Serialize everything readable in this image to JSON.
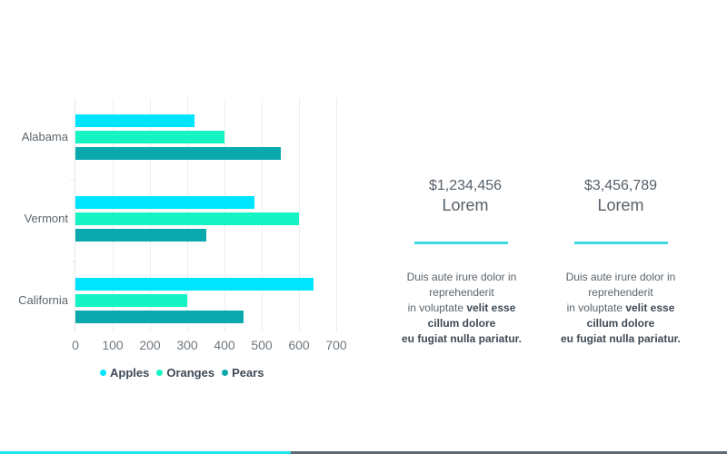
{
  "chart_data": {
    "type": "bar",
    "orientation": "horizontal",
    "title": "",
    "xlabel": "",
    "ylabel": "",
    "categories": [
      "Alabama",
      "Vermont",
      "California"
    ],
    "series": [
      {
        "name": "Apples",
        "color": "#00e5ff",
        "values": [
          320,
          480,
          640
        ]
      },
      {
        "name": "Oranges",
        "color": "#14f5c3",
        "values": [
          400,
          600,
          300
        ]
      },
      {
        "name": "Pears",
        "color": "#0aa9ae",
        "values": [
          550,
          350,
          450
        ]
      }
    ],
    "xlim": [
      0,
      700
    ],
    "x_ticks": [
      "0",
      "100",
      "200",
      "300",
      "400",
      "500",
      "600",
      "700"
    ],
    "grid": true,
    "legend_position": "bottom"
  },
  "stats": [
    {
      "amount": "$1,234,456",
      "label": "Lorem",
      "desc_plain_1": "Duis aute irure dolor in",
      "desc_plain_2": "reprehenderit",
      "desc_plain_3": "in voluptate ",
      "desc_bold_3": "velit esse",
      "desc_bold_4": "cillum dolore",
      "desc_bold_5": "eu fugiat nulla pariatur."
    },
    {
      "amount": "$3,456,789",
      "label": "Lorem",
      "desc_plain_1": "Duis aute irure dolor in",
      "desc_plain_2": "reprehenderit",
      "desc_plain_3": "in voluptate ",
      "desc_bold_3": "velit esse",
      "desc_bold_4": "cillum dolore",
      "desc_bold_5": "eu fugiat nulla pariatur."
    }
  ],
  "colors": {
    "accent_rule": "#3fd8e0",
    "footer_left": "#22e3f0",
    "footer_right": "#5b6a74"
  }
}
